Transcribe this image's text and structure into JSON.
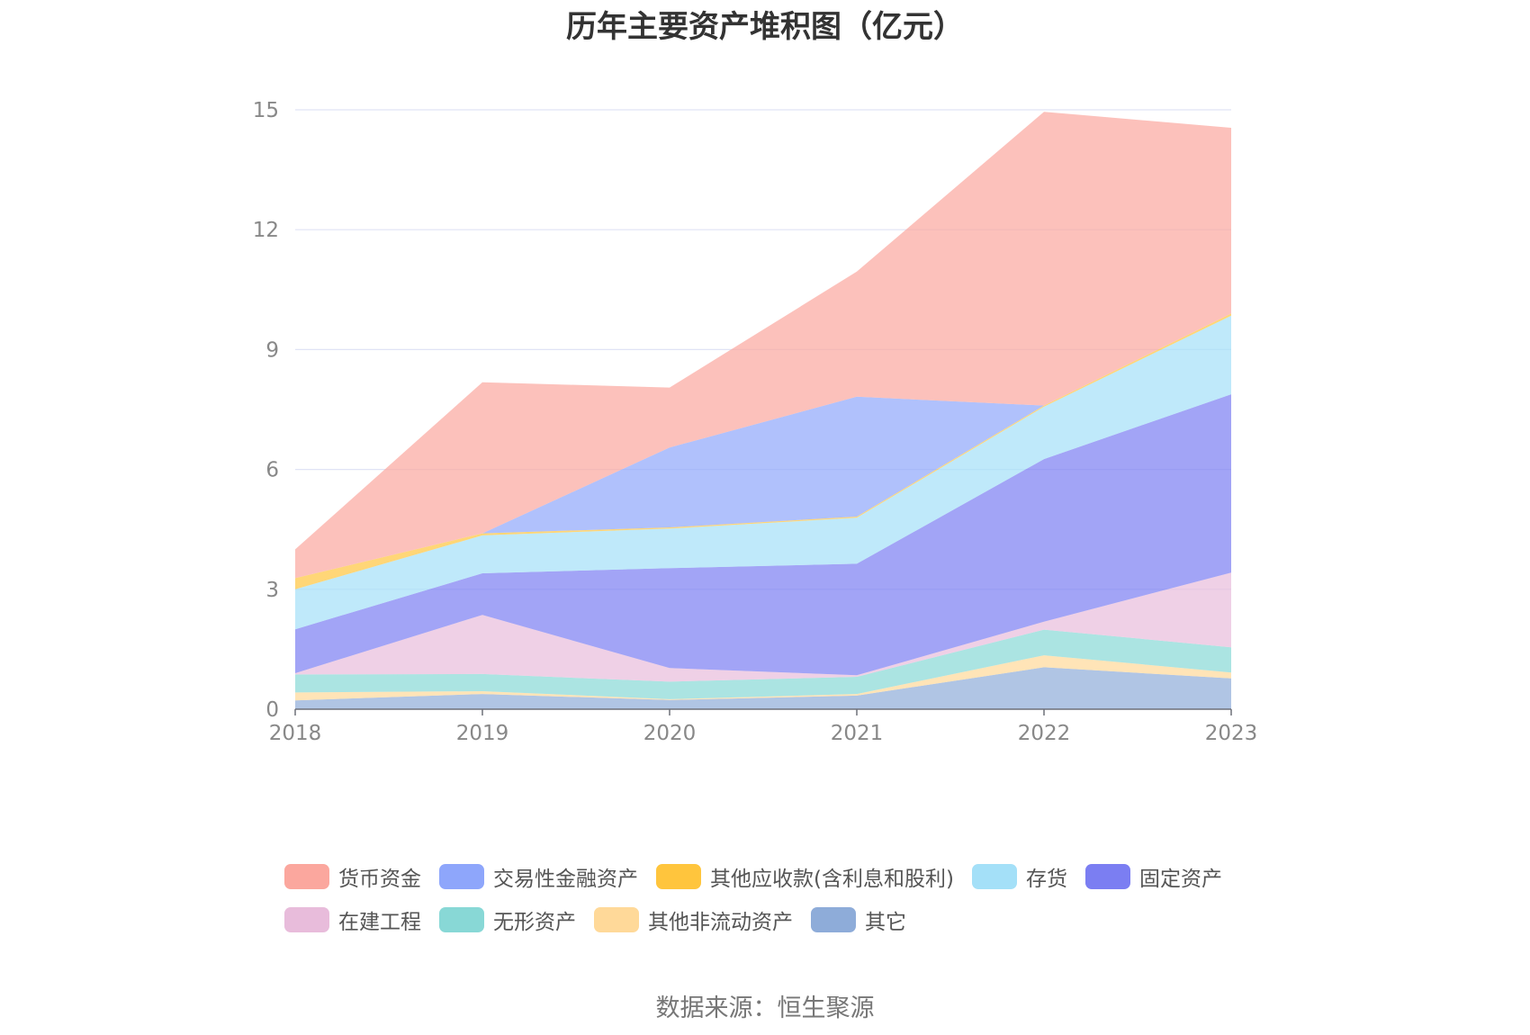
{
  "chart_data": {
    "type": "area",
    "stacked": true,
    "title": "历年主要资产堆积图（亿元）",
    "x": [
      "2018",
      "2019",
      "2020",
      "2021",
      "2022",
      "2023"
    ],
    "ylim": [
      0,
      15
    ],
    "yticks": [
      "0",
      "3",
      "6",
      "9",
      "12",
      "15"
    ],
    "grid": true,
    "legend_position": "bottom",
    "series": [
      {
        "name": "其它",
        "color": "#8eacd9",
        "values": [
          0.22,
          0.38,
          0.23,
          0.34,
          1.05,
          0.77
        ]
      },
      {
        "name": "其他非流动资产",
        "color": "#ffd999",
        "values": [
          0.2,
          0.07,
          0.02,
          0.04,
          0.3,
          0.15
        ]
      },
      {
        "name": "无形资产",
        "color": "#88d8d6",
        "values": [
          0.45,
          0.43,
          0.44,
          0.43,
          0.64,
          0.63
        ]
      },
      {
        "name": "在建工程",
        "color": "#e8bcdb",
        "values": [
          0.03,
          1.48,
          0.34,
          0.04,
          0.2,
          1.87
        ]
      },
      {
        "name": "固定资产",
        "color": "#7b7ef2",
        "values": [
          1.1,
          1.04,
          2.5,
          2.79,
          4.07,
          4.46
        ]
      },
      {
        "name": "存货",
        "color": "#a4e0f8",
        "values": [
          1.0,
          0.95,
          0.99,
          1.15,
          1.31,
          1.97
        ]
      },
      {
        "name": "其他应收款(含利息和股利)",
        "color": "#ffc53d",
        "values": [
          0.28,
          0.05,
          0.03,
          0.03,
          0.03,
          0.05
        ]
      },
      {
        "name": "交易性金融资产",
        "color": "#8ea6fb",
        "values": [
          0.0,
          0.0,
          2.0,
          3.0,
          0.0,
          0.0
        ]
      },
      {
        "name": "货币资金",
        "color": "#fba79e",
        "values": [
          0.72,
          3.78,
          1.5,
          3.13,
          7.35,
          4.65
        ]
      }
    ]
  },
  "legend": {
    "row1": [
      {
        "label": "货币资金",
        "color": "#fba79e"
      },
      {
        "label": "交易性金融资产",
        "color": "#8ea6fb"
      },
      {
        "label": "其他应收款(含利息和股利)",
        "color": "#ffc53d"
      },
      {
        "label": "存货",
        "color": "#a4e0f8"
      },
      {
        "label": "固定资产",
        "color": "#7b7ef2"
      }
    ],
    "row2": [
      {
        "label": "在建工程",
        "color": "#e8bcdb"
      },
      {
        "label": "无形资产",
        "color": "#88d8d6"
      },
      {
        "label": "其他非流动资产",
        "color": "#ffd999"
      },
      {
        "label": "其它",
        "color": "#8eacd9"
      }
    ]
  },
  "source": "数据来源：恒生聚源"
}
